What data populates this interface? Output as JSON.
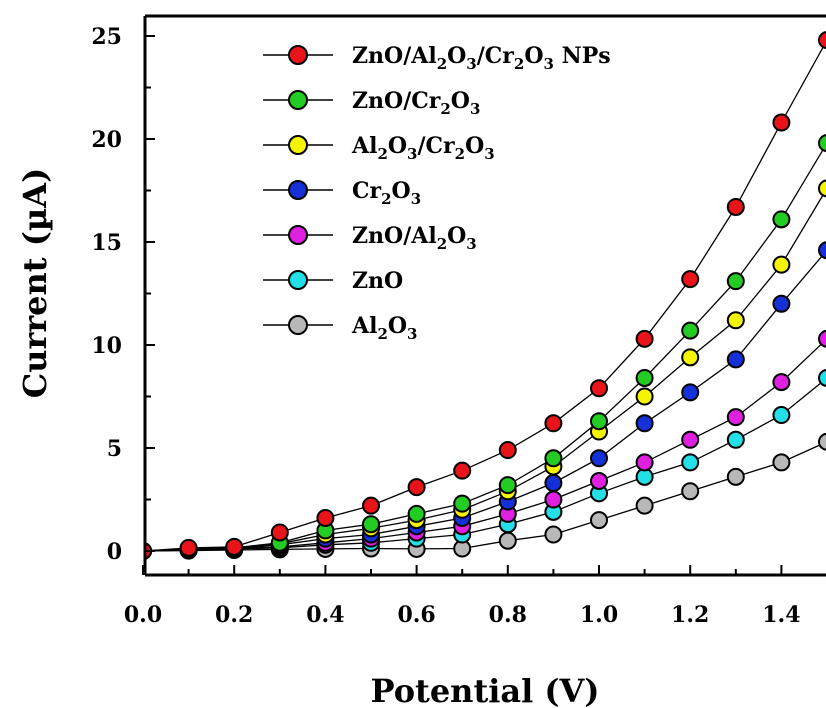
{
  "chart_data": {
    "type": "line",
    "title": "",
    "xlabel": "Potential (V)",
    "ylabel": "Current (µA)",
    "xlim": [
      0.0,
      1.5
    ],
    "ylim": [
      0,
      25
    ],
    "xticks": [
      "0.0",
      "0.2",
      "0.4",
      "0.6",
      "0.8",
      "1.0",
      "1.2",
      "1.4"
    ],
    "yticks": [
      "0",
      "5",
      "10",
      "15",
      "20",
      "25"
    ],
    "grid": false,
    "legend_position": "top-center",
    "x": [
      0.0,
      0.1,
      0.2,
      0.3,
      0.4,
      0.5,
      0.6,
      0.7,
      0.8,
      0.9,
      1.0,
      1.1,
      1.2,
      1.3,
      1.4,
      1.5
    ],
    "series": [
      {
        "name": "ZnO/Al2O3/Cr2O3 NPs",
        "color": "#e8141a",
        "values": [
          0,
          0.15,
          0.2,
          0.9,
          1.6,
          2.2,
          3.1,
          3.9,
          4.9,
          6.2,
          7.9,
          10.3,
          13.2,
          16.7,
          20.8,
          24.8
        ]
      },
      {
        "name": "ZnO/Cr2O3",
        "color": "#22cc22",
        "values": [
          0,
          0.1,
          0.15,
          0.4,
          1.0,
          1.3,
          1.8,
          2.3,
          3.2,
          4.5,
          6.3,
          8.4,
          10.7,
          13.1,
          16.1,
          19.8
        ]
      },
      {
        "name": "Al2O3/Cr2O3",
        "color": "#f5f500",
        "values": [
          0,
          0.1,
          0.15,
          0.35,
          0.8,
          1.1,
          1.5,
          2.0,
          2.9,
          4.1,
          5.8,
          7.5,
          9.4,
          11.2,
          13.9,
          17.6
        ]
      },
      {
        "name": "Cr2O3",
        "color": "#1530d8",
        "values": [
          0,
          0.05,
          0.1,
          0.3,
          0.6,
          0.8,
          1.2,
          1.6,
          2.4,
          3.3,
          4.5,
          6.2,
          7.7,
          9.3,
          12.0,
          14.6
        ]
      },
      {
        "name": "ZnO/Al2O3",
        "color": "#e020e0",
        "values": [
          0,
          0.05,
          0.1,
          0.2,
          0.4,
          0.6,
          0.9,
          1.2,
          1.8,
          2.5,
          3.4,
          4.3,
          5.4,
          6.5,
          8.2,
          10.3
        ]
      },
      {
        "name": "ZnO",
        "color": "#22dfe8",
        "values": [
          0,
          0.05,
          0.1,
          0.15,
          0.3,
          0.4,
          0.6,
          0.8,
          1.3,
          1.9,
          2.8,
          3.6,
          4.3,
          5.4,
          6.6,
          8.4
        ]
      },
      {
        "name": "Al2O3",
        "color": "#b8b8b8",
        "values": [
          0,
          0.02,
          0.05,
          0.08,
          0.1,
          0.12,
          0.1,
          0.12,
          0.5,
          0.8,
          1.5,
          2.2,
          2.9,
          3.6,
          4.3,
          5.3
        ]
      }
    ]
  },
  "legend": [
    {
      "parts": [
        {
          "t": "ZnO/Al"
        },
        {
          "t": "2",
          "sub": true
        },
        {
          "t": "O"
        },
        {
          "t": "3",
          "sub": true
        },
        {
          "t": "/Cr"
        },
        {
          "t": "2",
          "sub": true
        },
        {
          "t": "O"
        },
        {
          "t": "3",
          "sub": true
        },
        {
          "t": " NPs"
        }
      ]
    },
    {
      "parts": [
        {
          "t": "ZnO/Cr"
        },
        {
          "t": "2",
          "sub": true
        },
        {
          "t": "O"
        },
        {
          "t": "3",
          "sub": true
        }
      ]
    },
    {
      "parts": [
        {
          "t": "Al"
        },
        {
          "t": "2",
          "sub": true
        },
        {
          "t": "O"
        },
        {
          "t": "3",
          "sub": true
        },
        {
          "t": "/Cr"
        },
        {
          "t": "2",
          "sub": true
        },
        {
          "t": "O"
        },
        {
          "t": "3",
          "sub": true
        }
      ]
    },
    {
      "parts": [
        {
          "t": "Cr"
        },
        {
          "t": "2",
          "sub": true
        },
        {
          "t": "O"
        },
        {
          "t": "3",
          "sub": true
        }
      ]
    },
    {
      "parts": [
        {
          "t": "ZnO/Al"
        },
        {
          "t": "2",
          "sub": true
        },
        {
          "t": "O"
        },
        {
          "t": "3",
          "sub": true
        }
      ]
    },
    {
      "parts": [
        {
          "t": "ZnO"
        }
      ]
    },
    {
      "parts": [
        {
          "t": "Al"
        },
        {
          "t": "2",
          "sub": true
        },
        {
          "t": "O"
        },
        {
          "t": "3",
          "sub": true
        }
      ]
    }
  ]
}
